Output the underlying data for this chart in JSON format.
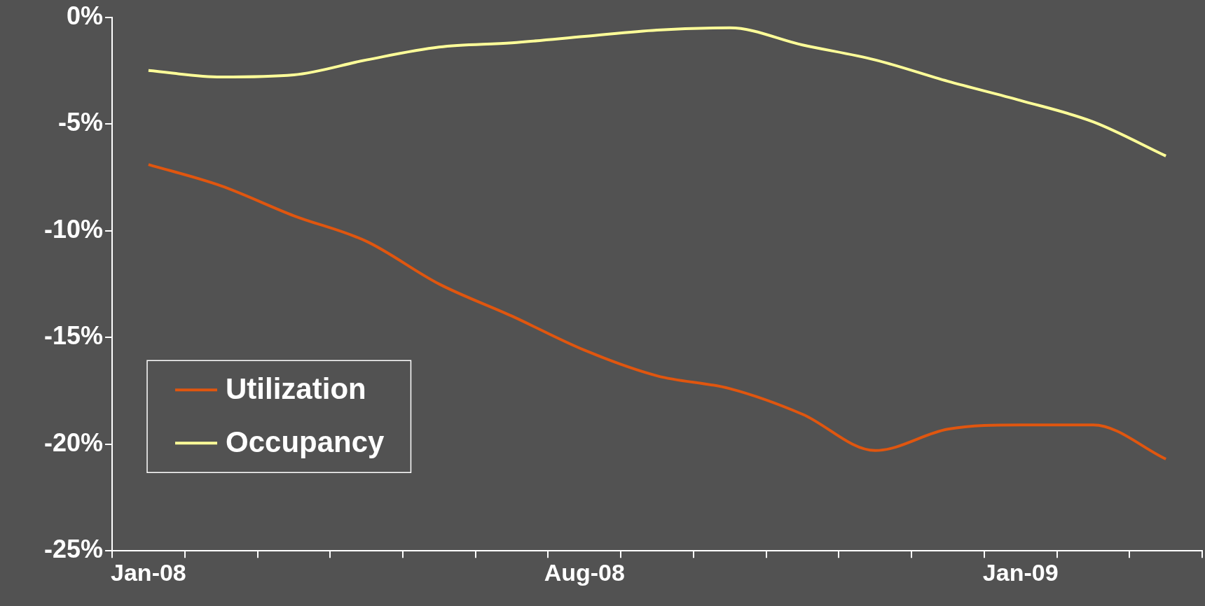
{
  "chart_data": {
    "type": "line",
    "categories": [
      "Jan-08",
      null,
      null,
      null,
      null,
      null,
      "Aug-08",
      null,
      null,
      null,
      null,
      null,
      "Jan-09",
      null,
      null
    ],
    "series": [
      {
        "name": "Utilization",
        "color": "#e0560f",
        "values": [
          -6.9,
          -7.9,
          -9.3,
          -10.5,
          -12.5,
          -14.0,
          -15.6,
          -16.8,
          -17.4,
          -18.6,
          -20.3,
          -19.3,
          -19.1,
          -19.1,
          -20.7
        ]
      },
      {
        "name": "Occupancy",
        "color": "#ffff99",
        "values": [
          -2.5,
          -2.8,
          -2.7,
          -2.0,
          -1.4,
          -1.2,
          -0.9,
          -0.6,
          -0.5,
          -1.3,
          -2.0,
          -3.0,
          -3.9,
          -4.9,
          -6.5
        ]
      }
    ],
    "ylim": [
      -25,
      0
    ],
    "yticks": [
      {
        "value": 0,
        "label": "0%"
      },
      {
        "value": -5,
        "label": "-5%"
      },
      {
        "value": -10,
        "label": "-10%"
      },
      {
        "value": -15,
        "label": "-15%"
      },
      {
        "value": -20,
        "label": "-20%"
      },
      {
        "value": -25,
        "label": "-25%"
      }
    ],
    "grid": false,
    "legend": "bottom left",
    "marker": "none",
    "line_style": "solid"
  }
}
